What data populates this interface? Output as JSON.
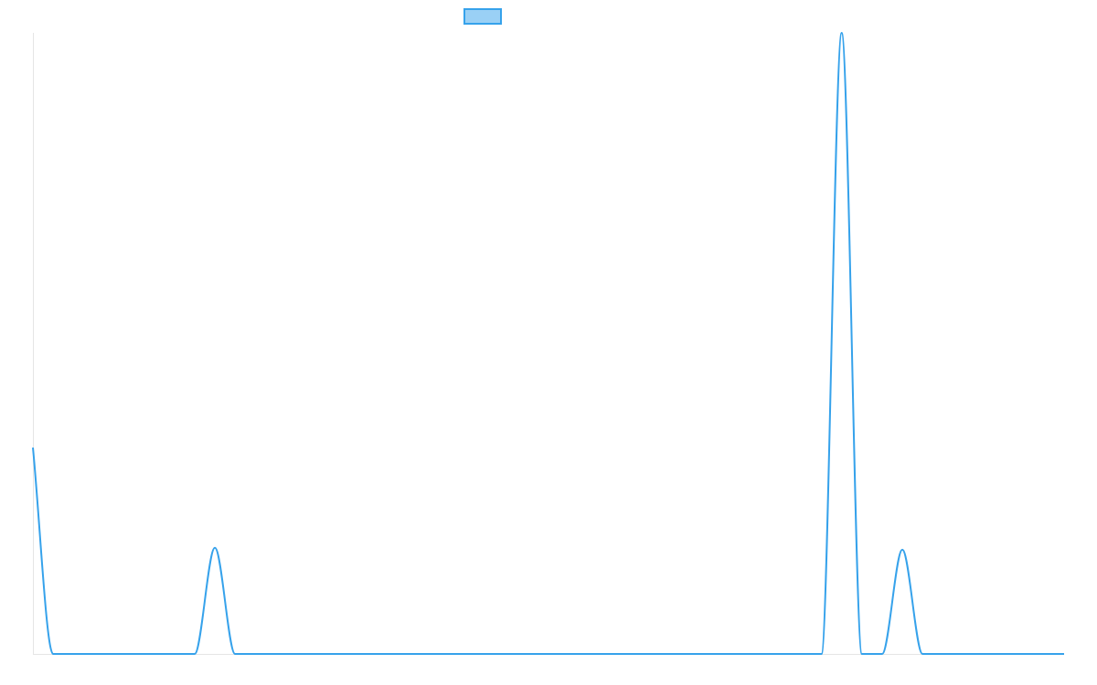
{
  "chart_data": {
    "type": "line",
    "title": "",
    "xlabel": "",
    "ylabel": "",
    "legend": {
      "position": "top-center",
      "entries": [
        {
          "name": "",
          "color": "#36a2eb",
          "fill": "#9ad0f5"
        }
      ]
    },
    "grid": false,
    "xlim": [
      0,
      51
    ],
    "ylim": [
      0,
      31
    ],
    "series": [
      {
        "name": "",
        "color": "#36a2eb",
        "x": [
          0,
          1,
          2,
          3,
          4,
          5,
          6,
          7,
          8,
          9,
          10,
          11,
          12,
          13,
          14,
          15,
          16,
          17,
          18,
          19,
          20,
          21,
          22,
          23,
          24,
          25,
          26,
          27,
          28,
          29,
          30,
          31,
          32,
          33,
          34,
          35,
          36,
          37,
          38,
          39,
          40,
          41,
          42,
          43,
          44,
          45,
          46,
          47,
          48,
          49,
          50,
          51
        ],
        "y": [
          10.3,
          0,
          0,
          0,
          0,
          0,
          0,
          0,
          0,
          5.3,
          0,
          0,
          0,
          0,
          0,
          0,
          0,
          0,
          0,
          0,
          0,
          0,
          0,
          0,
          0,
          0,
          0,
          0,
          0,
          0,
          0,
          0,
          0,
          0,
          0,
          0,
          0,
          0,
          0,
          0,
          31,
          0,
          0,
          5.2,
          0,
          0,
          0,
          0,
          0,
          0,
          0,
          0
        ]
      }
    ]
  }
}
